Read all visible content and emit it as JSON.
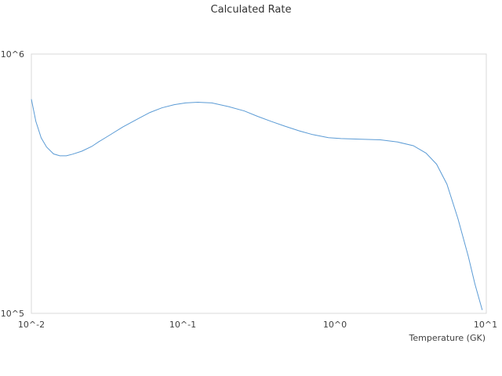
{
  "chart_data": {
    "type": "line",
    "title": "Calculated Rate",
    "xlabel": "Temperature (GK)",
    "ylabel": "",
    "xscale": "log",
    "yscale": "log",
    "xlim": [
      0.01,
      10
    ],
    "ylim": [
      100000,
      1000000
    ],
    "x_tick_labels": [
      "10^-2",
      "10^-1",
      "10^0",
      "10^1"
    ],
    "y_tick_labels": [
      "10^5",
      "10^6"
    ],
    "grid": false,
    "legend": "none",
    "colors": {
      "line": "#5b9bd5",
      "plot_border": "#d9d9d9",
      "text": "#404040"
    },
    "series": [
      {
        "x": [
          0.01,
          0.0107,
          0.0116,
          0.0126,
          0.014,
          0.0154,
          0.017,
          0.0187,
          0.0215,
          0.025,
          0.028,
          0.0325,
          0.04,
          0.0505,
          0.0605,
          0.0725,
          0.0875,
          0.104,
          0.125,
          0.155,
          0.2,
          0.254,
          0.31,
          0.384,
          0.47,
          0.58,
          0.715,
          0.91,
          1.1,
          1.5,
          2.0,
          2.6,
          3.3,
          4.0,
          4.7,
          5.5,
          6.5,
          7.6,
          8.4,
          9.4
        ],
        "y": [
          670000,
          550000,
          475000,
          438000,
          412000,
          405000,
          405000,
          411000,
          422000,
          440000,
          460000,
          485000,
          523000,
          563000,
          595000,
          620000,
          638000,
          648000,
          652000,
          648000,
          627000,
          603000,
          575000,
          549000,
          527000,
          506000,
          489000,
          476000,
          472000,
          469000,
          467000,
          458000,
          443000,
          415000,
          376000,
          315000,
          232000,
          166000,
          130000,
          103000
        ]
      }
    ]
  }
}
